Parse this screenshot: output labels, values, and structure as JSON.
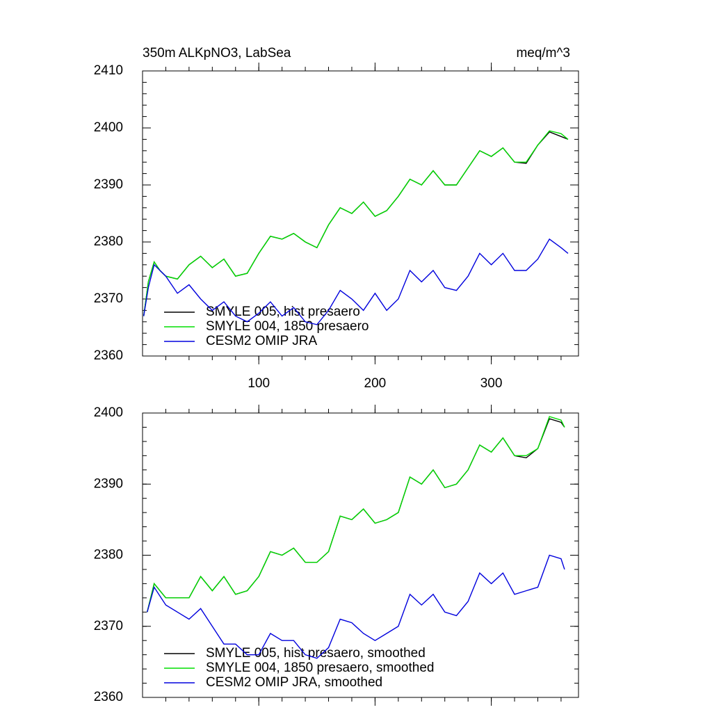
{
  "chart_data": [
    {
      "type": "line",
      "title": "350m ALKpNO3, LabSea",
      "units": "meq/m^3",
      "x": [
        1,
        5,
        10,
        15,
        20,
        30,
        40,
        50,
        60,
        70,
        80,
        90,
        100,
        110,
        120,
        130,
        140,
        150,
        160,
        170,
        180,
        190,
        200,
        210,
        220,
        230,
        240,
        250,
        260,
        270,
        280,
        290,
        300,
        310,
        320,
        330,
        340,
        350,
        360,
        366
      ],
      "series": [
        {
          "name": "SMYLE 005, hist presaero",
          "color": "#000000",
          "values": [
            2367,
            2373,
            2376.5,
            2375,
            2374,
            2373.5,
            2376,
            2377.5,
            2375.5,
            2377,
            2374,
            2374.5,
            2378,
            2381,
            2380.5,
            2381.5,
            2380,
            2379,
            2383,
            2386,
            2385,
            2387,
            2384.5,
            2385.5,
            2388,
            2391,
            2390,
            2392.5,
            2390,
            2390,
            2393,
            2396,
            2395,
            2396.5,
            2394,
            2393.8,
            2397,
            2399.3,
            2398.5,
            2398
          ]
        },
        {
          "name": "SMYLE 004, 1850 presaero",
          "color": "#00dd00",
          "values": [
            2367,
            2373,
            2376.5,
            2375,
            2374,
            2373.5,
            2376,
            2377.5,
            2375.5,
            2377,
            2374,
            2374.5,
            2378,
            2381,
            2380.5,
            2381.5,
            2380,
            2379,
            2383,
            2386,
            2385,
            2387,
            2384.5,
            2385.5,
            2388,
            2391,
            2390,
            2392.5,
            2390,
            2390,
            2393,
            2396,
            2395,
            2396.5,
            2394,
            2394,
            2397,
            2399.5,
            2399,
            2398
          ]
        },
        {
          "name": "CESM2 OMIP JRA",
          "color": "#0000dd",
          "values": [
            2367,
            2372,
            2376,
            2375,
            2374,
            2371,
            2372.5,
            2370,
            2368,
            2369.5,
            2367,
            2366,
            2367.5,
            2369.5,
            2367,
            2368.5,
            2366,
            2365.5,
            2368,
            2371.5,
            2370,
            2368,
            2371,
            2368,
            2370,
            2375,
            2373,
            2375,
            2372,
            2371.5,
            2374,
            2378,
            2376,
            2378,
            2375,
            2375,
            2377,
            2380.5,
            2379,
            2378
          ]
        }
      ],
      "xlim": [
        0,
        375
      ],
      "xticks": [
        100,
        200,
        300
      ],
      "ylim": [
        2360,
        2410
      ],
      "yticks": [
        2360,
        2370,
        2380,
        2390,
        2400,
        2410
      ]
    },
    {
      "type": "line",
      "x": [
        4,
        10,
        20,
        30,
        40,
        50,
        60,
        70,
        80,
        90,
        100,
        110,
        120,
        130,
        140,
        150,
        160,
        170,
        180,
        190,
        200,
        210,
        220,
        230,
        240,
        250,
        260,
        270,
        280,
        290,
        300,
        310,
        320,
        330,
        340,
        350,
        360,
        363
      ],
      "series": [
        {
          "name": "SMYLE 005, hist presaero, smoothed",
          "color": "#000000",
          "values": [
            2372,
            2376,
            2374,
            2374,
            2374,
            2377,
            2375,
            2377,
            2374.5,
            2375,
            2377,
            2380.5,
            2380,
            2381,
            2379,
            2379,
            2380.5,
            2385.5,
            2385,
            2386.5,
            2384.5,
            2385,
            2386,
            2391,
            2390,
            2392,
            2389.5,
            2390,
            2392,
            2395.5,
            2394.5,
            2396.5,
            2394,
            2393.7,
            2395,
            2399.2,
            2398.7,
            2398
          ]
        },
        {
          "name": "SMYLE 004, 1850 presaero, smoothed",
          "color": "#00dd00",
          "values": [
            2372,
            2376,
            2374,
            2374,
            2374,
            2377,
            2375,
            2377,
            2374.5,
            2375,
            2377,
            2380.5,
            2380,
            2381,
            2379,
            2379,
            2380.5,
            2385.5,
            2385,
            2386.5,
            2384.5,
            2385,
            2386,
            2391,
            2390,
            2392,
            2389.5,
            2390,
            2392,
            2395.5,
            2394.5,
            2396.5,
            2394,
            2394,
            2395,
            2399.5,
            2399,
            2398
          ]
        },
        {
          "name": "CESM2 OMIP JRA, smoothed",
          "color": "#0000dd",
          "values": [
            2372,
            2375.5,
            2373,
            2372,
            2371,
            2372.5,
            2370,
            2367.5,
            2367.5,
            2366,
            2366,
            2369,
            2368,
            2368,
            2366,
            2365.5,
            2367,
            2371,
            2370.5,
            2369,
            2368,
            2369,
            2370,
            2374.5,
            2373,
            2374.5,
            2372,
            2371.5,
            2373.5,
            2377.5,
            2376,
            2377.5,
            2374.5,
            2375,
            2375.5,
            2380,
            2379.5,
            2378
          ]
        }
      ],
      "xlim": [
        0,
        375
      ],
      "ylim": [
        2360,
        2400
      ],
      "yticks": [
        2360,
        2370,
        2380,
        2390,
        2400
      ]
    }
  ]
}
